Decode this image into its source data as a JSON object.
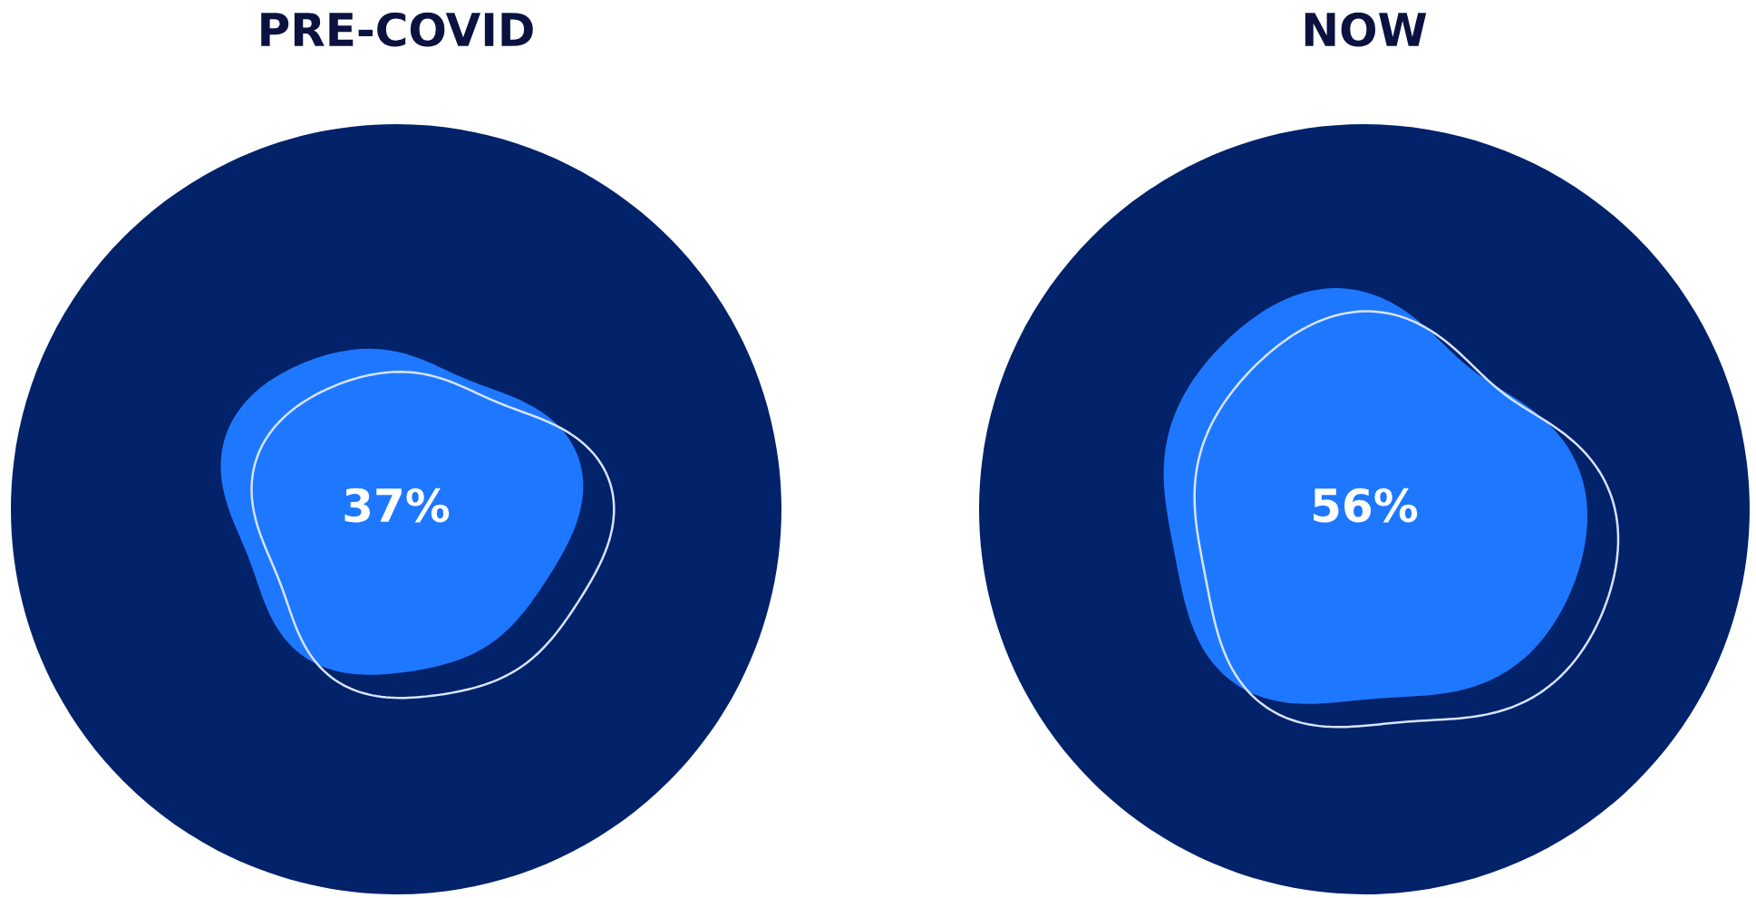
{
  "chart_data": [
    {
      "type": "other",
      "title": "PRE-COVID",
      "values": [
        37
      ],
      "value_labels": [
        "37%"
      ],
      "color": "#1e78ff"
    },
    {
      "type": "other",
      "title": "NOW",
      "values": [
        56
      ],
      "value_labels": [
        "56%"
      ],
      "color": "#1e78ff"
    }
  ]
}
